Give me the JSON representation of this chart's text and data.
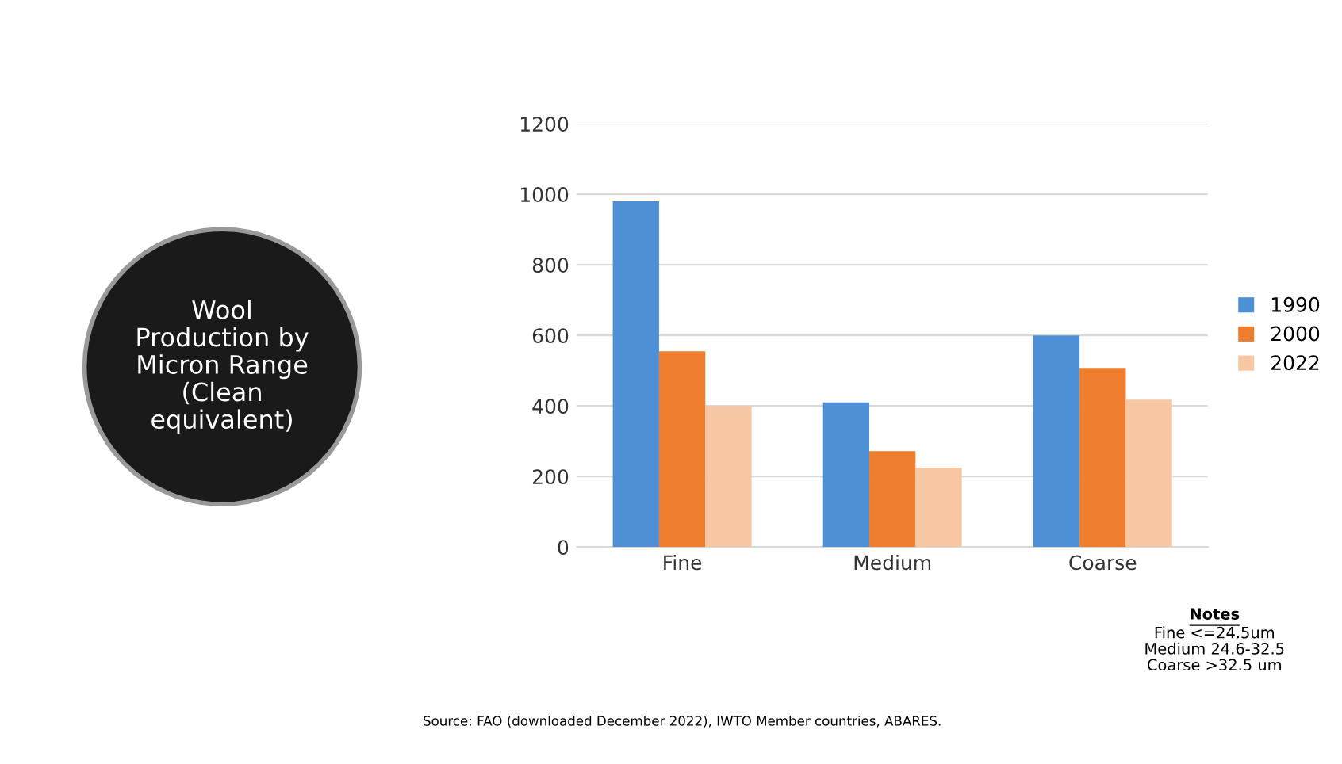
{
  "chart_data": {
    "type": "bar",
    "title": "Wool\nProduction by\nMicron Range\n(Clean\nequivalent)",
    "categories": [
      "Fine",
      "Medium",
      "Coarse"
    ],
    "series": [
      {
        "name": "1990",
        "color": "#4e90d6",
        "values": [
          980,
          410,
          600
        ]
      },
      {
        "name": "2000",
        "color": "#ef7d2e",
        "values": [
          555,
          272,
          508
        ]
      },
      {
        "name": "2022",
        "color": "#f7c6a3",
        "values": [
          400,
          225,
          418
        ]
      }
    ],
    "ylim": [
      0,
      1200
    ],
    "yticks": [
      0,
      200,
      400,
      600,
      800,
      1000,
      1200
    ],
    "grid": "y",
    "legend": "right",
    "annotations": [
      "Notes",
      "Fine <=24.5um\nMedium 24.6-32.5\nCoarse >32.5 um",
      "Source: FAO (downloaded December 2022), IWTO Member countries, ABARES."
    ]
  }
}
